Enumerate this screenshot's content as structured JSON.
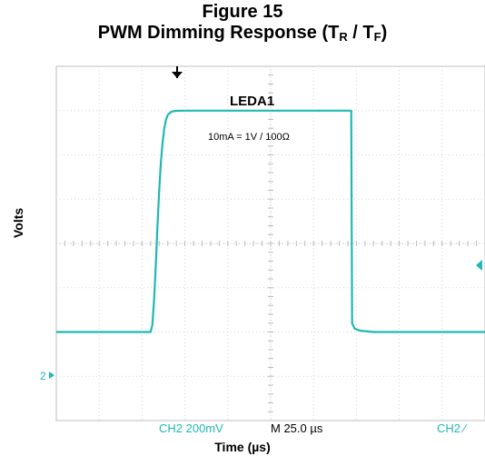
{
  "figure": {
    "title_line1": "Figure 15",
    "title_main": "PWM Dimming Response (T",
    "title_sub_r": "R",
    "title_mid": " / T",
    "title_sub_f": "F",
    "title_end": ")"
  },
  "chart_data": {
    "type": "line",
    "xlabel": "Time (µs)",
    "ylabel": "Volts",
    "x_unit": "µs",
    "y_unit": "mV",
    "time_per_div": 25.0,
    "volts_per_div": 200,
    "grid": true,
    "xlim": [
      -75,
      175
    ],
    "ylim": [
      -400,
      1200
    ],
    "series": [
      {
        "name": "LEDA1",
        "color": "#1fb8b4",
        "x": [
          -75,
          -20,
          -19,
          -18,
          -17,
          -16,
          -15,
          -14,
          -13,
          -12,
          -11,
          -10,
          -9,
          -8,
          -7,
          -5,
          0,
          50,
          97,
          97.5,
          99,
          102,
          110,
          175
        ],
        "y": [
          0,
          0,
          30,
          140,
          300,
          480,
          640,
          770,
          860,
          920,
          960,
          980,
          988,
          994,
          997,
          999,
          1000,
          1000,
          1000,
          40,
          15,
          6,
          0,
          0
        ]
      }
    ],
    "annotations": {
      "label": "LEDA1",
      "scale_note": "10mA = 1V / 100Ω"
    }
  },
  "scope": {
    "ground_marker": "2",
    "ch_scale": "CH2  200mV",
    "timebase": "M 25.0 µs",
    "trigger": "CH2 ⁄",
    "trigger_color": "#1fb8b4"
  }
}
